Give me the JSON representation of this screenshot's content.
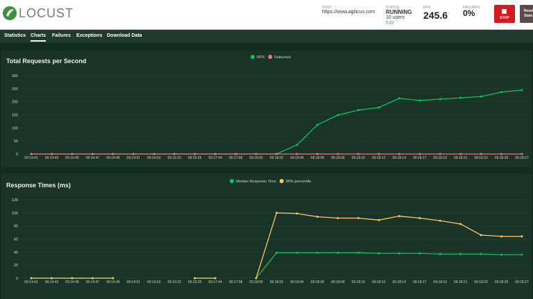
{
  "header": {
    "logo": "LOCUST",
    "host_label": "HOST",
    "host": "https://www.agilicus.com",
    "status_label": "STATUS",
    "status": "RUNNING",
    "users": "10 users",
    "edit": "Edit",
    "rps_label": "RPS",
    "rps": "245.6",
    "failures_label": "FAILURES",
    "failures": "0%",
    "stop": "STOP",
    "reset": "Reset Stats"
  },
  "tabs": [
    "Statistics",
    "Charts",
    "Failures",
    "Exceptions",
    "Download Data"
  ],
  "chart_data": [
    {
      "type": "line",
      "title": "Total Requests per Second",
      "categories": [
        "09:14:41",
        "09:14:43",
        "09:14:45",
        "09:14:47",
        "09:14:49",
        "09:14:51",
        "09:14:53",
        "09:15:23",
        "09:15:25",
        "09:17:44",
        "09:17:58",
        "09:18:00",
        "09:18:02",
        "09:18:04",
        "09:18:06",
        "09:18:08",
        "09:18:10",
        "09:18:12",
        "09:18:14",
        "09:18:17",
        "09:18:19",
        "09:18:21",
        "09:18:23",
        "09:18:25",
        "09:18:27"
      ],
      "series": [
        {
          "name": "RPS",
          "color": "#00ca5a",
          "values": [
            0,
            0,
            0,
            0,
            0,
            0,
            0,
            0,
            0,
            0,
            0,
            0,
            0,
            35,
            112,
            149,
            168,
            178,
            213,
            205,
            210,
            215,
            220,
            237,
            245
          ]
        },
        {
          "name": "Failures/s",
          "color": "#ff6d6d",
          "values": [
            0,
            0,
            0,
            0,
            0,
            0,
            0,
            0,
            0,
            0,
            0,
            0,
            0,
            0,
            0,
            0,
            0,
            0,
            0,
            0,
            0,
            0,
            0,
            0,
            0
          ]
        }
      ],
      "ylim": [
        0,
        300
      ],
      "yticks": [
        0,
        50,
        100,
        150,
        200,
        250,
        300
      ]
    },
    {
      "type": "line",
      "title": "Response Times (ms)",
      "categories": [
        "09:14:41",
        "09:14:43",
        "09:14:45",
        "09:14:47",
        "09:14:49",
        "09:14:51",
        "09:14:53",
        "09:15:23",
        "09:15:25",
        "09:17:44",
        "09:17:58",
        "09:18:00",
        "09:18:02",
        "09:18:04",
        "09:18:06",
        "09:18:08",
        "09:18:10",
        "09:18:12",
        "09:18:14",
        "09:18:17",
        "09:18:19",
        "09:18:21",
        "09:18:23",
        "09:18:25",
        "09:18:27"
      ],
      "series": [
        {
          "name": "Median Response Time",
          "color": "#00ca5a",
          "values": [
            0,
            0,
            0,
            0,
            0,
            null,
            null,
            null,
            0,
            0,
            null,
            0,
            39,
            39,
            39,
            39,
            39,
            38,
            38,
            38,
            37,
            37,
            37,
            36,
            36
          ]
        },
        {
          "name": "95% percentile",
          "color": "#ffca5a",
          "values": [
            0,
            0,
            0,
            0,
            0,
            null,
            null,
            null,
            0,
            0,
            null,
            0,
            100,
            99,
            94,
            92,
            92,
            89,
            95,
            92,
            88,
            83,
            66,
            64,
            64
          ]
        }
      ],
      "ylim": [
        0,
        120
      ],
      "yticks": [
        0,
        20,
        40,
        60,
        80,
        100,
        120
      ]
    }
  ]
}
